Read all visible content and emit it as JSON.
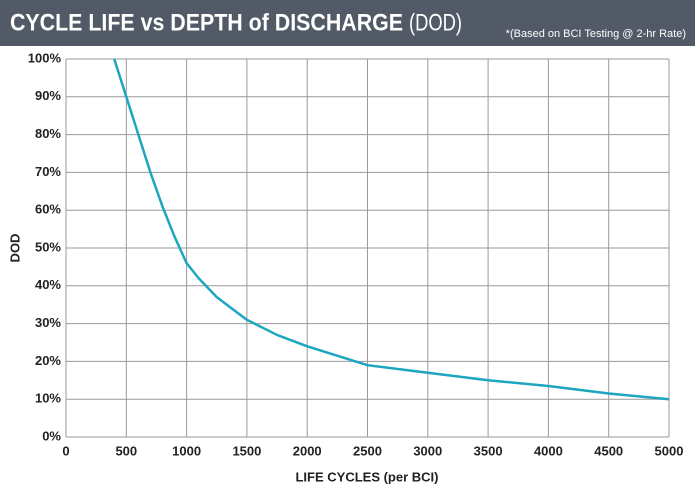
{
  "chart_data": {
    "type": "line",
    "title": "CYCLE LIFE vs DEPTH of DISCHARGE",
    "title_suffix": "(DOD)",
    "subtitle": "*(Based on BCI Testing @ 2-hr Rate)",
    "x_label": "LIFE CYCLES (per BCI)",
    "y_label": "DOD",
    "x": [
      400,
      500,
      600,
      700,
      800,
      900,
      1000,
      1100,
      1250,
      1500,
      1750,
      2000,
      2500,
      3000,
      3500,
      4000,
      4500,
      5000
    ],
    "series": [
      {
        "color": "#1ca6bf",
        "values": [
          100,
          90,
          80,
          70,
          61,
          53,
          46,
          42,
          37,
          31,
          27,
          24,
          19,
          17,
          15,
          13.5,
          11.5,
          10
        ]
      }
    ],
    "xlim": [
      0,
      5000
    ],
    "xticks": [
      0,
      500,
      1000,
      1500,
      2000,
      2500,
      3000,
      3500,
      4000,
      4500,
      5000
    ],
    "ylim": [
      0,
      100
    ],
    "yticks": [
      {
        "value": 0,
        "label": "0%"
      },
      {
        "value": 10,
        "label": "10%"
      },
      {
        "value": 20,
        "label": "20%"
      },
      {
        "value": 30,
        "label": "30%"
      },
      {
        "value": 40,
        "label": "40%"
      },
      {
        "value": 50,
        "label": "50%"
      },
      {
        "value": 60,
        "label": "60%"
      },
      {
        "value": 70,
        "label": "70%"
      },
      {
        "value": 80,
        "label": "80%"
      },
      {
        "value": 90,
        "label": "90%"
      },
      {
        "value": 100,
        "label": "100%"
      }
    ],
    "grid": true
  }
}
